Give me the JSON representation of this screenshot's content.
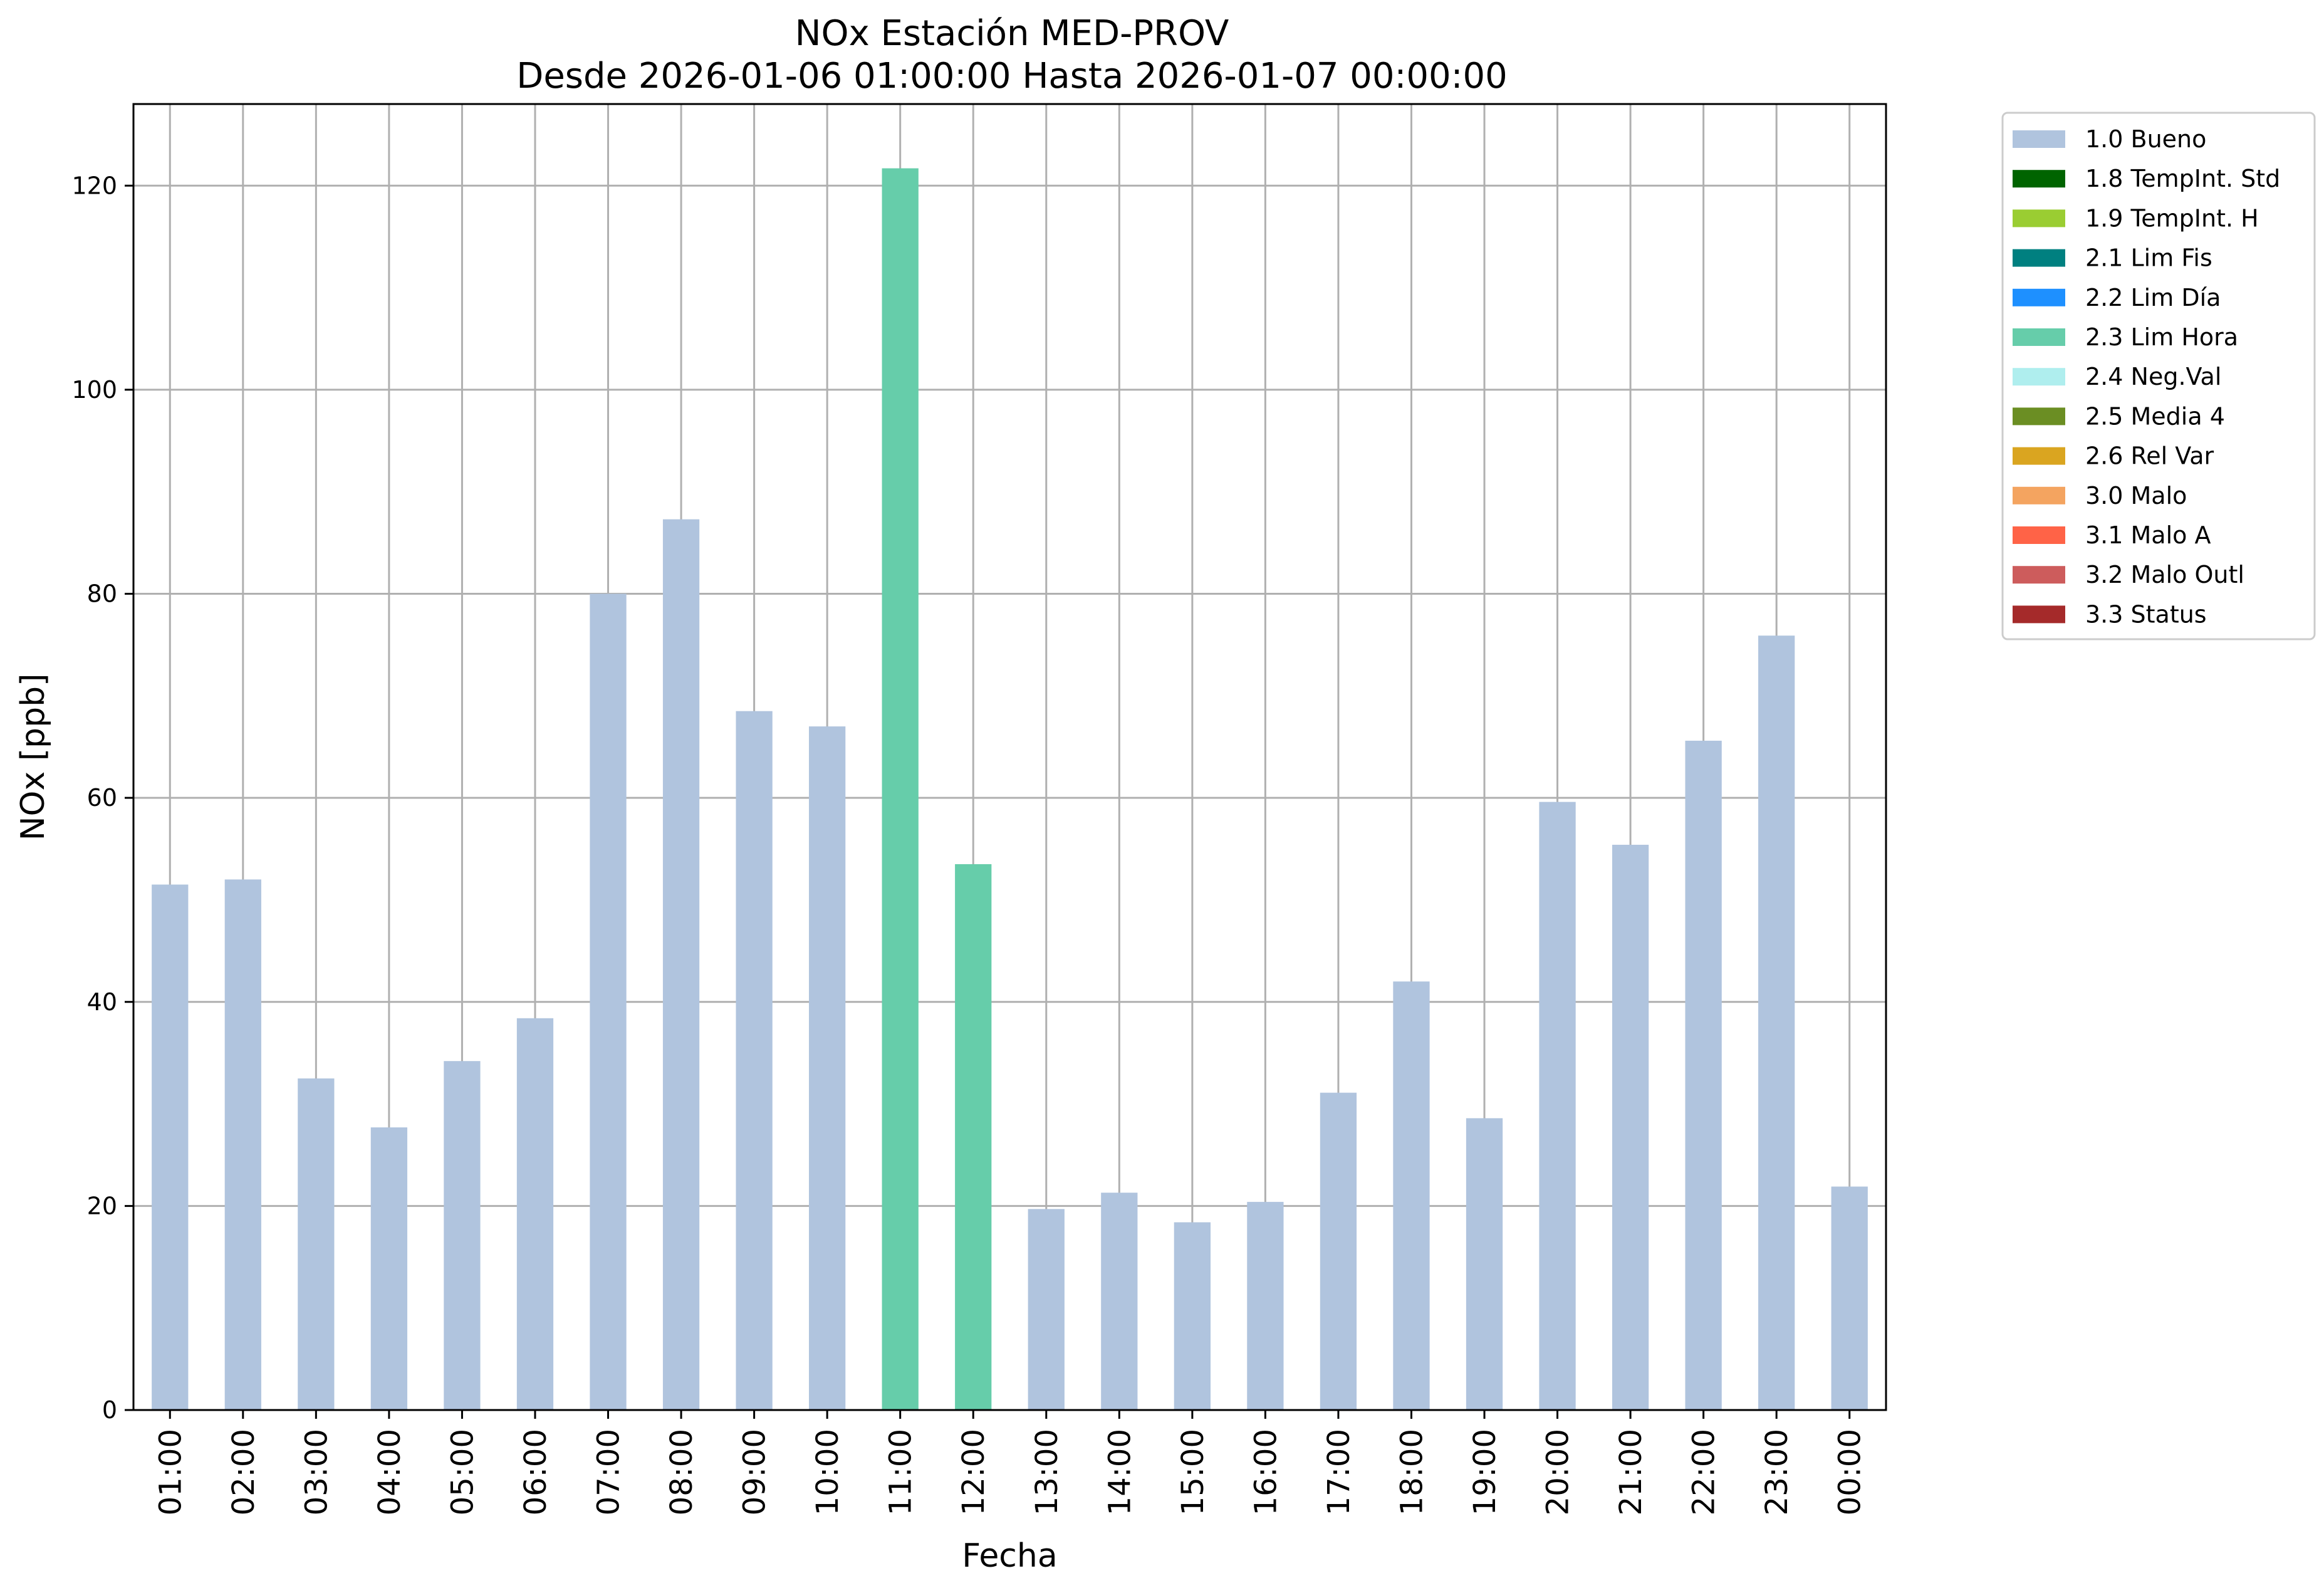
{
  "chart_data": {
    "type": "bar",
    "title": "NOx Estación MED-PROV",
    "subtitle": "Desde 2026-01-06 01:00:00 Hasta 2026-01-07 00:00:00",
    "xlabel": "Fecha",
    "ylabel": "NOx [ppb]",
    "ylim": [
      0,
      128
    ],
    "yticks": [
      0,
      20,
      40,
      60,
      80,
      100,
      120
    ],
    "grid": true,
    "legend_position": "outside-top-right",
    "categories": [
      "01:00",
      "02:00",
      "03:00",
      "04:00",
      "05:00",
      "06:00",
      "07:00",
      "08:00",
      "09:00",
      "10:00",
      "11:00",
      "12:00",
      "13:00",
      "14:00",
      "15:00",
      "16:00",
      "17:00",
      "18:00",
      "19:00",
      "20:00",
      "21:00",
      "22:00",
      "23:00",
      "00:00"
    ],
    "values": [
      51.5,
      52.0,
      32.5,
      27.7,
      34.2,
      38.4,
      80.0,
      87.3,
      68.5,
      67.0,
      121.7,
      53.5,
      19.7,
      21.3,
      18.4,
      20.4,
      31.1,
      42.0,
      28.6,
      59.6,
      55.4,
      65.6,
      75.9,
      21.9
    ],
    "flags": [
      "1.0 Bueno",
      "1.0 Bueno",
      "1.0 Bueno",
      "1.0 Bueno",
      "1.0 Bueno",
      "1.0 Bueno",
      "1.0 Bueno",
      "1.0 Bueno",
      "1.0 Bueno",
      "1.0 Bueno",
      "2.3 Lim Hora",
      "2.3 Lim Hora",
      "1.0 Bueno",
      "1.0 Bueno",
      "1.0 Bueno",
      "1.0 Bueno",
      "1.0 Bueno",
      "1.0 Bueno",
      "1.0 Bueno",
      "1.0 Bueno",
      "1.0 Bueno",
      "1.0 Bueno",
      "1.0 Bueno",
      "1.0 Bueno"
    ],
    "legend": [
      {
        "name": "1.0 Bueno",
        "color": "#b0c4de"
      },
      {
        "name": "1.8 TempInt. Std",
        "color": "#006400"
      },
      {
        "name": "1.9 TempInt. H",
        "color": "#9acd32"
      },
      {
        "name": "2.1 Lim Fis",
        "color": "#008080"
      },
      {
        "name": "2.2 Lim Día",
        "color": "#1e90ff"
      },
      {
        "name": "2.3 Lim Hora",
        "color": "#66cdaa"
      },
      {
        "name": "2.4 Neg.Val",
        "color": "#afeeee"
      },
      {
        "name": "2.5 Media 4",
        "color": "#6b8e23"
      },
      {
        "name": "2.6 Rel Var",
        "color": "#daa520"
      },
      {
        "name": "3.0 Malo",
        "color": "#f4a460"
      },
      {
        "name": "3.1 Malo A",
        "color": "#ff6347"
      },
      {
        "name": "3.2 Malo Outl",
        "color": "#cd5c5c"
      },
      {
        "name": "3.3 Status",
        "color": "#a52a2a"
      }
    ]
  }
}
